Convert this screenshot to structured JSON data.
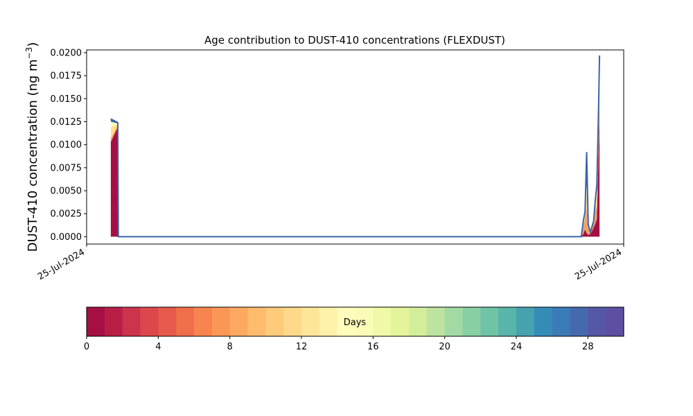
{
  "chart_data": {
    "type": "area",
    "title": "Age contribution to DUST-410 concentrations (FLEXDUST)",
    "ylabel_main": "DUST-410 concentration (ng m",
    "ylabel_exp": "−3",
    "ylabel_close": ")",
    "xlabel": "",
    "x_ticks": [
      "25-Jul-2024",
      "25-Jul-2024"
    ],
    "ylim": [
      -0.0008,
      0.0203
    ],
    "xlim": [
      0,
      1
    ],
    "y_ticks": [
      "0.0000",
      "0.0025",
      "0.0050",
      "0.0075",
      "0.0100",
      "0.0125",
      "0.0150",
      "0.0175",
      "0.0200"
    ],
    "y_tick_values": [
      0,
      0.0025,
      0.005,
      0.0075,
      0.01,
      0.0125,
      0.015,
      0.0175,
      0.02
    ],
    "grid": false,
    "series_colors": [
      "#a50f43",
      "#f2a35f",
      "#fee08b",
      "#ffffbf",
      "#3b63a8"
    ],
    "series": [
      {
        "age_days": 0,
        "x": [
          0.045,
          0.058,
          0.059,
          0.921,
          0.925,
          0.928,
          0.931,
          0.934,
          0.938,
          0.941,
          0.944,
          0.947,
          0.95,
          0.953,
          0.955
        ],
        "values": [
          0.0103,
          0.0119,
          0,
          0,
          0.0003,
          0.0008,
          0.0004,
          0.0002,
          0.0003,
          0.0006,
          0.001,
          0.0014,
          0.0019,
          0.0085,
          0.0133
        ]
      },
      {
        "age_days": 4,
        "x": [
          0.045,
          0.058,
          0.059,
          0.921,
          0.925,
          0.928,
          0.931,
          0.934,
          0.938,
          0.941,
          0.944,
          0.947,
          0.95,
          0.953,
          0.955
        ],
        "values": [
          0.0004,
          0.0002,
          0,
          0,
          0.0008,
          0.0012,
          0.0028,
          0.0009,
          0.0001,
          0.0004,
          0.0006,
          0.0013,
          0.0014,
          0.0018,
          0.0027
        ]
      },
      {
        "age_days": 10,
        "x": [
          0.045,
          0.058,
          0.059,
          0.921,
          0.925,
          0.928,
          0.931,
          0.934,
          0.938,
          0.941,
          0.944,
          0.947,
          0.95,
          0.953,
          0.955
        ],
        "values": [
          0.0012,
          0.0001,
          0,
          0,
          0.0005,
          0.0004,
          0.0018,
          0.0001,
          0.0,
          0.0001,
          0.0001,
          0.0006,
          0.0012,
          0.0015,
          0.0018
        ]
      },
      {
        "age_days": 16,
        "x": [
          0.045,
          0.058,
          0.059,
          0.921,
          0.925,
          0.928,
          0.931,
          0.934,
          0.938,
          0.941,
          0.944,
          0.947,
          0.95,
          0.953,
          0.955
        ],
        "values": [
          0.0006,
          0.0001,
          0,
          0,
          0.0001,
          0.0001,
          0.0008,
          0.0,
          0.0,
          0.0,
          0.0,
          0.0003,
          0.0005,
          0.0006,
          0.0011
        ]
      },
      {
        "age_days": 28,
        "x": [
          0.045,
          0.058,
          0.059,
          0.921,
          0.925,
          0.928,
          0.931,
          0.934,
          0.938,
          0.941,
          0.944,
          0.947,
          0.95,
          0.953,
          0.955
        ],
        "values": [
          0.0003,
          0.0001,
          0,
          0,
          0.0001,
          0.0002,
          0.0034,
          0.0001,
          0.0001,
          0.0,
          0.0,
          0.0003,
          0.0006,
          0.001,
          0.0008
        ]
      }
    ]
  },
  "colorbar": {
    "label": "Days",
    "range": [
      0,
      30
    ],
    "ticks": [
      "0",
      "4",
      "8",
      "12",
      "16",
      "20",
      "24",
      "28"
    ],
    "tick_values": [
      0,
      4,
      8,
      12,
      16,
      20,
      24,
      28
    ],
    "colors": [
      "#a50f43",
      "#b91e47",
      "#cc334c",
      "#dc474c",
      "#e65a4b",
      "#f06f4b",
      "#f7844e",
      "#fa9656",
      "#fda960",
      "#febc6c",
      "#fdcb7a",
      "#fed989",
      "#fee699",
      "#fff1a9",
      "#fffcbc",
      "#f9fcb7",
      "#f0f9a7",
      "#e3f49b",
      "#d2ee9b",
      "#bce4a0",
      "#a3daa4",
      "#88cfa5",
      "#6fc4a5",
      "#59b4aa",
      "#45a2ae",
      "#358db7",
      "#3a7bb7",
      "#4569ae",
      "#5556a5",
      "#5e4fa2"
    ]
  }
}
